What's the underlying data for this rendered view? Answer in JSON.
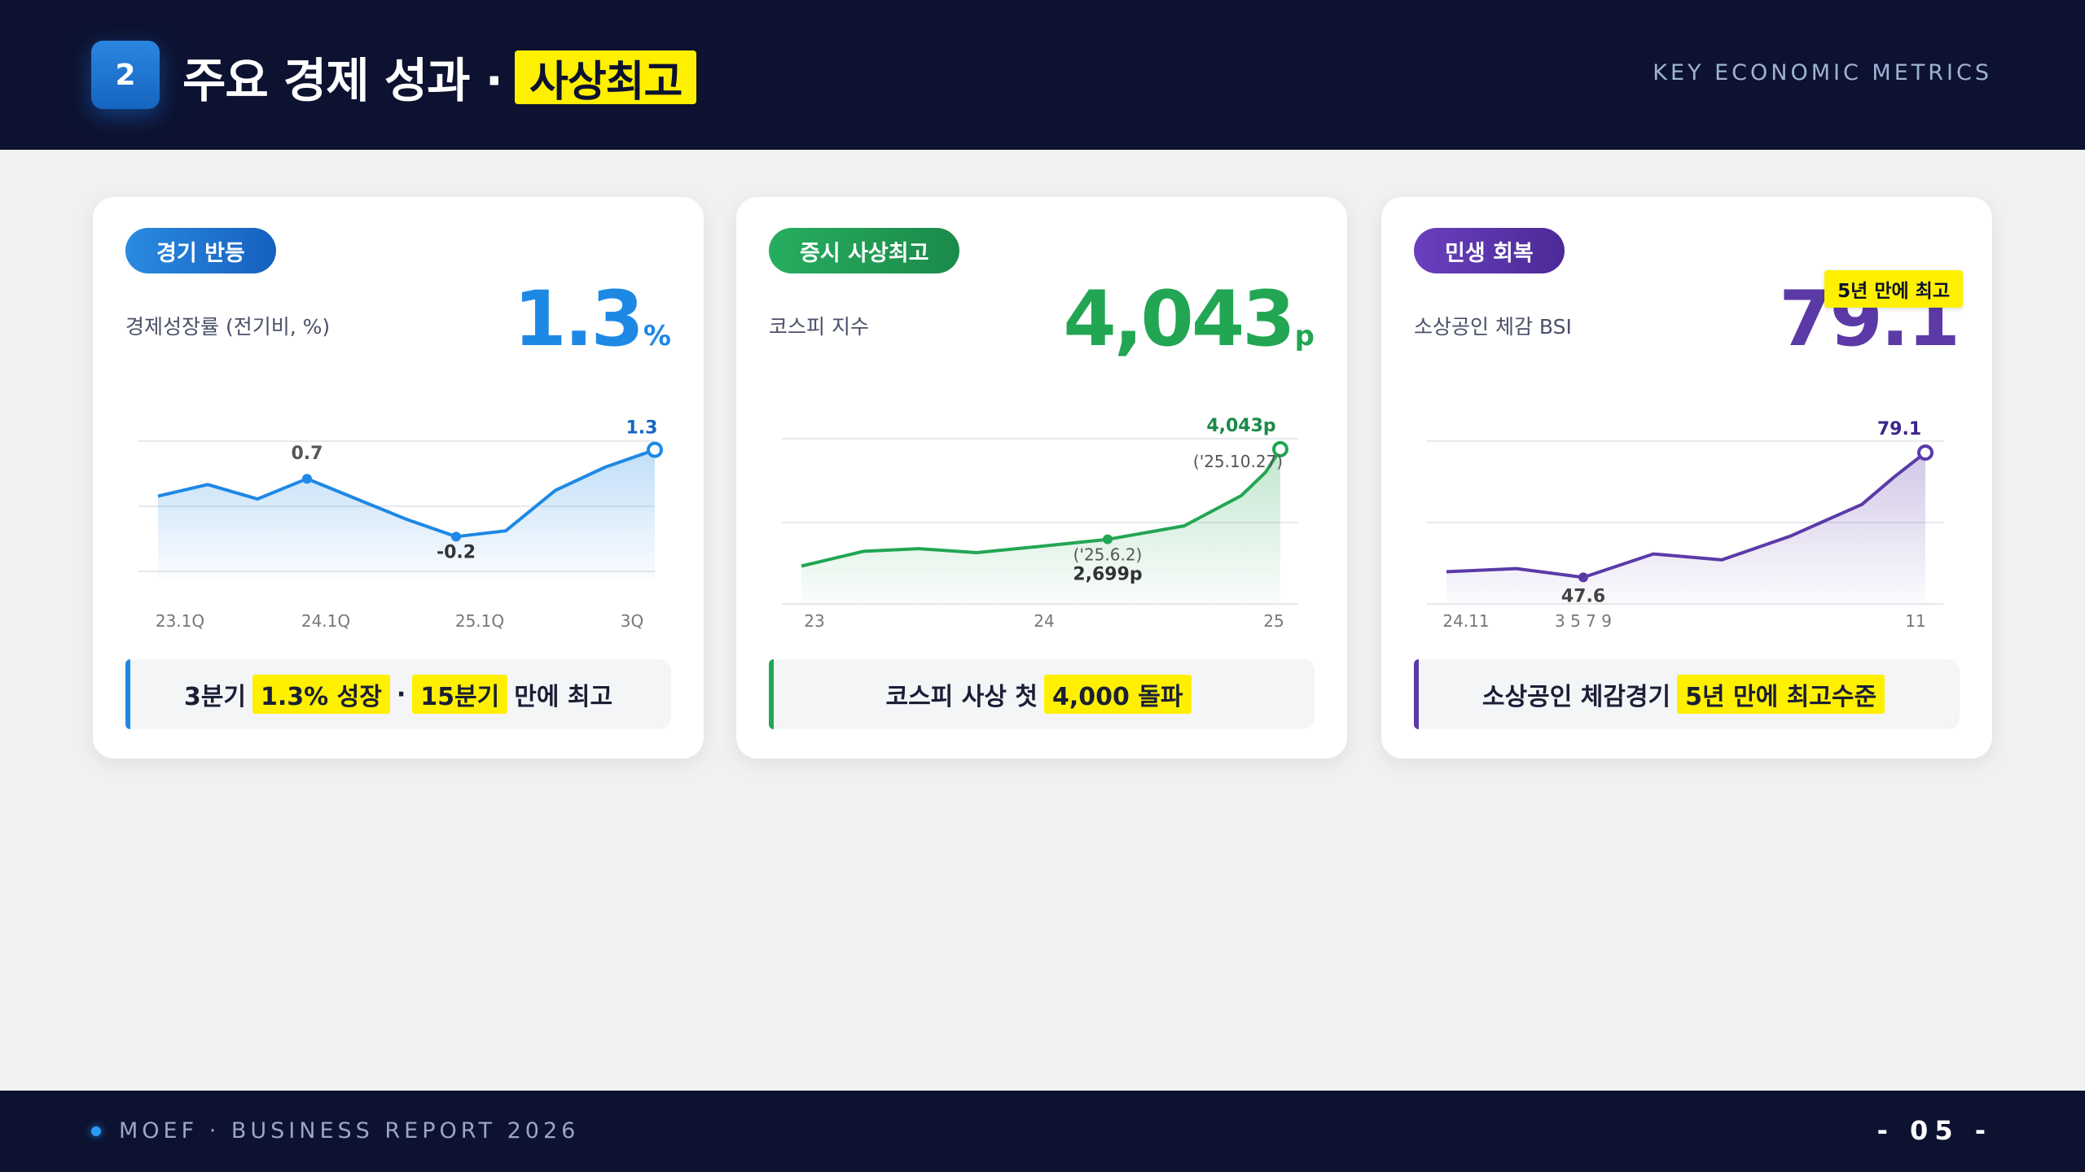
{
  "header": {
    "section_number": "2",
    "title": "주요 경제 성과 ·",
    "title_highlight": "사상최고",
    "subtitle_en": "KEY ECONOMIC METRICS"
  },
  "cards": [
    {
      "tag": "경기 반등",
      "metric_label": "경제성장률 (전기비, %)",
      "metric_value": "1.3",
      "metric_unit": "%",
      "summary": {
        "prefix": "3분기",
        "highlight1": "1.3% 성장",
        "separator": "·",
        "highlight2": "15분기",
        "suffix": "만에 최고"
      }
    },
    {
      "tag": "증시 사상최고",
      "metric_label": "코스피 지수",
      "metric_value": "4,043",
      "metric_unit": "p",
      "summary": {
        "prefix": "코스피 사상 첫",
        "highlight1": "4,000 돌파"
      }
    },
    {
      "tag": "민생 회복",
      "metric_label": "소상공인 체감 BSI",
      "metric_value": "79.1",
      "metric_unit": "",
      "badge": "5년 만에 최고",
      "summary": {
        "prefix": "소상공인 체감경기",
        "highlight1": "5년 만에 최고수준"
      }
    }
  ],
  "chart_data": [
    {
      "type": "area",
      "color": "#1e88e5",
      "x": [
        "23.1Q",
        "23.2Q",
        "23.3Q",
        "23.4Q",
        "24.1Q",
        "24.2Q",
        "24.3Q",
        "24.4Q",
        "25.1Q",
        "25.2Q",
        "25.3Q"
      ],
      "values": [
        0.5,
        0.7,
        0.45,
        0.8,
        0.45,
        0.1,
        -0.2,
        -0.1,
        0.6,
        1.0,
        1.3
      ],
      "tick_labels": [
        {
          "index": 0,
          "text": "23.1Q"
        },
        {
          "index": 2,
          "text": "24.1Q"
        },
        {
          "index": 4,
          "text": "25.1Q"
        },
        {
          "index": 7,
          "text": "3Q"
        }
      ],
      "annotations": [
        {
          "text": "0.7"
        },
        {
          "text": "-0.2"
        },
        {
          "text": "1.3"
        }
      ],
      "ylim": [
        -0.35,
        1.45
      ]
    },
    {
      "type": "area",
      "color": "#22a653",
      "x": [
        "23",
        "23.5",
        "24",
        "24.5",
        "25.3",
        "25.6",
        "25.8",
        "25.9",
        "25.10",
        "25.10.27"
      ],
      "values": [
        2300,
        2520,
        2560,
        2500,
        2590,
        2699,
        2900,
        3350,
        3700,
        4043
      ],
      "tick_labels": [
        {
          "text": "23"
        },
        {
          "text": "24"
        },
        {
          "text": "25"
        }
      ],
      "annotations": [
        {
          "text": "('25.6.2)"
        },
        {
          "text": "2,699p"
        },
        {
          "text": "4,043p"
        },
        {
          "text": "('25.10.27)"
        }
      ],
      "ylim": [
        2100,
        4200
      ]
    },
    {
      "type": "area",
      "color": "#5b3aa8",
      "x": [
        "24.11",
        "1",
        "2",
        "3",
        "5",
        "7",
        "9",
        "10",
        "11"
      ],
      "values": [
        49.0,
        49.8,
        47.6,
        53.5,
        52.0,
        58.0,
        66.0,
        73.0,
        79.1
      ],
      "tick_labels": [
        {
          "text": "24.11"
        },
        {
          "text": "3 5 7 9"
        },
        {
          "text": "11"
        }
      ],
      "annotations": [
        {
          "text": "47.6"
        },
        {
          "text": "79.1"
        }
      ],
      "ylim": [
        45,
        82
      ]
    }
  ],
  "footer": {
    "text": "MOEF · BUSINESS REPORT 2026",
    "page": "- 05 -"
  }
}
